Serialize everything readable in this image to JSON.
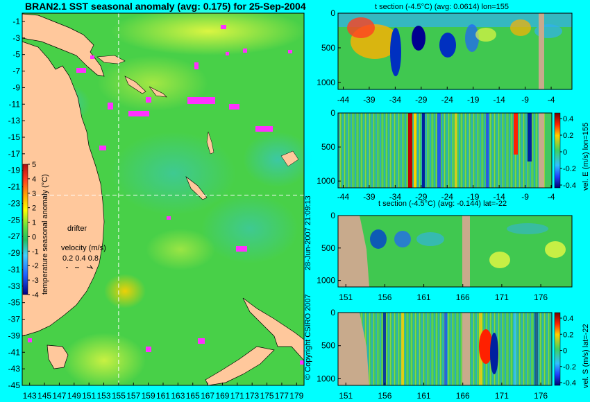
{
  "figure": {
    "title": "BRAN2.1 SST seasonal anomaly (avg: 0.175) for 25-Sep-2004",
    "copyright": "© Copyright CSIRO 2007",
    "date_stamp": "28-Jun-2007 21:09:13",
    "colors": {
      "background": "#00ffff",
      "land": "#ffc89c",
      "section_land": "#c8aa8c",
      "drifter": "#ff30ff",
      "line": "#ffffff"
    }
  },
  "chart_data": [
    {
      "type": "heatmap",
      "name": "map",
      "title": "BRAN2.1 SST seasonal anomaly (avg: 0.175) for 25-Sep-2004",
      "x_ticks": [
        143,
        145,
        147,
        149,
        151,
        153,
        155,
        157,
        159,
        161,
        163,
        165,
        167,
        169,
        171,
        173,
        175,
        177,
        179
      ],
      "y_ticks": [
        -1,
        -3,
        -5,
        -7,
        -9,
        -11,
        -13,
        -15,
        -17,
        -19,
        -21,
        -23,
        -25,
        -27,
        -29,
        -31,
        -33,
        -35,
        -37,
        -39,
        -41,
        -43,
        -45
      ],
      "xlim": [
        142,
        180
      ],
      "ylim": [
        -45,
        0
      ],
      "section_lon": 155,
      "section_lat": -22,
      "colorbar": {
        "label": "temperature seasonal anomaly (°C)",
        "ticks": [
          5,
          4,
          3,
          2,
          1,
          0,
          -1,
          -2,
          -3,
          -4
        ],
        "range": [
          -4,
          5
        ]
      },
      "legend": {
        "drifter": "drifter",
        "velocity_label": "velocity (m/s)",
        "velocity_values": "0.2 0.4 0.8"
      }
    },
    {
      "type": "heatmap",
      "name": "t-section-lon",
      "title": "t section (-4.5°C) (avg: 0.0614) lon=155",
      "x_ticks": [
        -44,
        -39,
        -34,
        -29,
        -24,
        -19,
        -14,
        -9,
        -4
      ],
      "xlim": [
        -45,
        0
      ],
      "y_ticks": [
        0,
        500,
        1000
      ],
      "ylim": [
        1100,
        0
      ]
    },
    {
      "type": "heatmap",
      "name": "v-section-lon",
      "title": "",
      "x_ticks": [
        -44,
        -39,
        -34,
        -29,
        -24,
        -19,
        -14,
        -9,
        -4
      ],
      "xlim": [
        -45,
        0
      ],
      "y_ticks": [
        0,
        500,
        1000
      ],
      "ylim": [
        1100,
        0
      ],
      "colorbar": {
        "label": "vel. E (m/s) lon=155",
        "ticks": [
          "0.4",
          "0.2",
          "0",
          "-0.2",
          "-0.4"
        ]
      }
    },
    {
      "type": "heatmap",
      "name": "t-section-lat",
      "title": "t section (-4.5°C) (avg: -0.144) lat=-22",
      "x_ticks": [
        151,
        156,
        161,
        166,
        171,
        176
      ],
      "xlim": [
        150,
        180
      ],
      "y_ticks": [
        0,
        500,
        1000
      ],
      "ylim": [
        1100,
        0
      ]
    },
    {
      "type": "heatmap",
      "name": "v-section-lat",
      "title": "",
      "x_ticks": [
        151,
        156,
        161,
        166,
        171,
        176
      ],
      "xlim": [
        150,
        180
      ],
      "y_ticks": [
        0,
        500,
        1000
      ],
      "ylim": [
        1100,
        0
      ],
      "colorbar": {
        "label": "vel. S (m/s) lat=-22",
        "ticks": [
          "0.4",
          "0.2",
          "0",
          "-0.2",
          "-0.4"
        ]
      }
    }
  ]
}
